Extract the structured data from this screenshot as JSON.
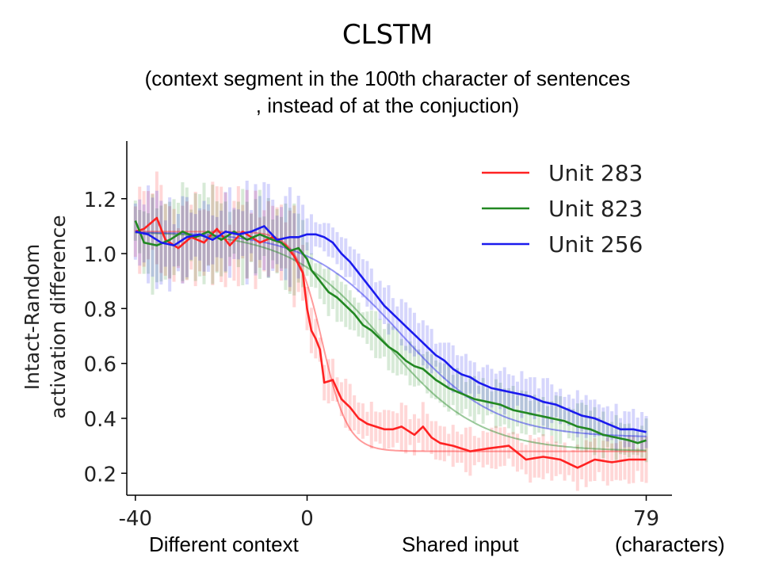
{
  "chart_data": {
    "type": "line",
    "title": "CLSTM",
    "subtitle_lines": [
      "(context segment in the 100th character of sentences",
      ", instead of at the conjuction)"
    ],
    "ylabel_lines": [
      "Intact-Random",
      "activation difference"
    ],
    "xtick_labels": [
      "-40",
      "0",
      "79"
    ],
    "xticks": [
      -40,
      0,
      79
    ],
    "yticks": [
      0.2,
      0.4,
      0.6,
      0.8,
      1.0,
      1.2
    ],
    "ytick_labels": [
      "0.2",
      "0.4",
      "0.6",
      "0.8",
      "1.0",
      "1.2"
    ],
    "xlim": [
      -42,
      85
    ],
    "ylim": [
      0.12,
      1.41
    ],
    "under_labels": {
      "left": "Different context",
      "middle": "Shared input",
      "right": "(characters)"
    },
    "legend_position": "top-right",
    "grid": false,
    "x_range": [
      -40,
      79
    ],
    "series": [
      {
        "name": "Unit 283",
        "color": "#ff2222",
        "keypoints": [
          [
            -40,
            1.08
          ],
          [
            -38,
            1.09
          ],
          [
            -35,
            1.13
          ],
          [
            -33,
            1.05
          ],
          [
            -30,
            1.02
          ],
          [
            -27,
            1.06
          ],
          [
            -24,
            1.04
          ],
          [
            -21,
            1.09
          ],
          [
            -18,
            1.03
          ],
          [
            -15,
            1.08
          ],
          [
            -11,
            1.04
          ],
          [
            -8,
            1.06
          ],
          [
            -5,
            1.03
          ],
          [
            -3,
            0.99
          ],
          [
            -1,
            0.93
          ],
          [
            0,
            0.8
          ],
          [
            1,
            0.72
          ],
          [
            2,
            0.69
          ],
          [
            3,
            0.65
          ],
          [
            4,
            0.53
          ],
          [
            6,
            0.54
          ],
          [
            8,
            0.47
          ],
          [
            10,
            0.44
          ],
          [
            12,
            0.4
          ],
          [
            14,
            0.38
          ],
          [
            16,
            0.37
          ],
          [
            18,
            0.36
          ],
          [
            20,
            0.36
          ],
          [
            22,
            0.37
          ],
          [
            25,
            0.34
          ],
          [
            27,
            0.37
          ],
          [
            29,
            0.33
          ],
          [
            31,
            0.31
          ],
          [
            34,
            0.3
          ],
          [
            38,
            0.28
          ],
          [
            42,
            0.29
          ],
          [
            47,
            0.3
          ],
          [
            51,
            0.25
          ],
          [
            55,
            0.26
          ],
          [
            59,
            0.25
          ],
          [
            63,
            0.22
          ],
          [
            67,
            0.25
          ],
          [
            71,
            0.24
          ],
          [
            75,
            0.25
          ],
          [
            79,
            0.25
          ]
        ],
        "fit": {
          "low": 0.28,
          "high": 1.08,
          "mid": 3.5,
          "scale": 3.0
        }
      },
      {
        "name": "Unit 823",
        "color": "#228822",
        "keypoints": [
          [
            -40,
            1.12
          ],
          [
            -38,
            1.04
          ],
          [
            -35,
            1.03
          ],
          [
            -32,
            1.05
          ],
          [
            -29,
            1.08
          ],
          [
            -26,
            1.06
          ],
          [
            -23,
            1.08
          ],
          [
            -20,
            1.05
          ],
          [
            -17,
            1.08
          ],
          [
            -14,
            1.05
          ],
          [
            -11,
            1.07
          ],
          [
            -8,
            1.05
          ],
          [
            -6,
            1.04
          ],
          [
            -4,
            1.01
          ],
          [
            -2,
            1.02
          ],
          [
            0,
            0.98
          ],
          [
            1,
            0.94
          ],
          [
            3,
            0.9
          ],
          [
            5,
            0.86
          ],
          [
            7,
            0.84
          ],
          [
            9,
            0.81
          ],
          [
            11,
            0.78
          ],
          [
            13,
            0.74
          ],
          [
            15,
            0.72
          ],
          [
            17,
            0.69
          ],
          [
            19,
            0.66
          ],
          [
            21,
            0.64
          ],
          [
            23,
            0.61
          ],
          [
            25,
            0.59
          ],
          [
            27,
            0.58
          ],
          [
            30,
            0.54
          ],
          [
            33,
            0.51
          ],
          [
            36,
            0.49
          ],
          [
            39,
            0.47
          ],
          [
            42,
            0.46
          ],
          [
            45,
            0.45
          ],
          [
            48,
            0.43
          ],
          [
            51,
            0.42
          ],
          [
            54,
            0.41
          ],
          [
            57,
            0.4
          ],
          [
            60,
            0.39
          ],
          [
            63,
            0.37
          ],
          [
            66,
            0.36
          ],
          [
            69,
            0.34
          ],
          [
            72,
            0.33
          ],
          [
            75,
            0.32
          ],
          [
            77,
            0.31
          ],
          [
            79,
            0.32
          ]
        ],
        "fit": {
          "low": 0.28,
          "high": 1.08,
          "mid": 18.0,
          "scale": 11.0
        }
      },
      {
        "name": "Unit 256",
        "color": "#1a1aee",
        "keypoints": [
          [
            -40,
            1.08
          ],
          [
            -37,
            1.07
          ],
          [
            -34,
            1.04
          ],
          [
            -31,
            1.03
          ],
          [
            -28,
            1.06
          ],
          [
            -25,
            1.07
          ],
          [
            -22,
            1.05
          ],
          [
            -19,
            1.08
          ],
          [
            -16,
            1.07
          ],
          [
            -13,
            1.08
          ],
          [
            -10,
            1.1
          ],
          [
            -7,
            1.05
          ],
          [
            -4,
            1.06
          ],
          [
            -2,
            1.06
          ],
          [
            0,
            1.07
          ],
          [
            2,
            1.07
          ],
          [
            4,
            1.06
          ],
          [
            6,
            1.04
          ],
          [
            8,
            1.0
          ],
          [
            10,
            0.97
          ],
          [
            12,
            0.93
          ],
          [
            14,
            0.89
          ],
          [
            16,
            0.85
          ],
          [
            18,
            0.81
          ],
          [
            20,
            0.78
          ],
          [
            22,
            0.75
          ],
          [
            24,
            0.72
          ],
          [
            26,
            0.69
          ],
          [
            28,
            0.66
          ],
          [
            30,
            0.63
          ],
          [
            32,
            0.61
          ],
          [
            34,
            0.58
          ],
          [
            36,
            0.56
          ],
          [
            38,
            0.55
          ],
          [
            40,
            0.53
          ],
          [
            43,
            0.51
          ],
          [
            46,
            0.5
          ],
          [
            49,
            0.49
          ],
          [
            52,
            0.48
          ],
          [
            55,
            0.46
          ],
          [
            58,
            0.45
          ],
          [
            61,
            0.43
          ],
          [
            64,
            0.41
          ],
          [
            67,
            0.4
          ],
          [
            70,
            0.38
          ],
          [
            73,
            0.36
          ],
          [
            76,
            0.36
          ],
          [
            79,
            0.35
          ]
        ],
        "fit": {
          "low": 0.33,
          "high": 1.08,
          "mid": 22.0,
          "scale": 11.0
        }
      }
    ]
  }
}
